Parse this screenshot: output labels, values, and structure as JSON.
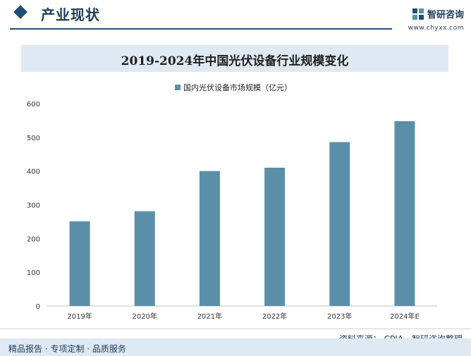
{
  "header": {
    "section_title": "产业现状",
    "brand_name": "智研咨询",
    "brand_url": "www.chyxx.com"
  },
  "chart_data": {
    "type": "bar",
    "title": "2019-2024年中国光伏设备行业规模变化",
    "legend": [
      "国内光伏设备市场规模（亿元）"
    ],
    "categories": [
      "2019年",
      "2020年",
      "2021年",
      "2022年",
      "2023年",
      "2024年E"
    ],
    "series": [
      {
        "name": "国内光伏设备市场规模（亿元）",
        "values": [
          251,
          281,
          400,
          410,
          486,
          548
        ]
      }
    ],
    "ylim": [
      0,
      600
    ],
    "yticks": [
      0,
      100,
      200,
      300,
      400,
      500,
      600
    ],
    "xlabel": "",
    "ylabel": "",
    "grid": false,
    "bar_color": "#5b8fa8"
  },
  "footer": {
    "source": "资料来源： CPIA、智研咨询整理",
    "tagline": "精品报告 · 专项定制 · 品质服务"
  }
}
